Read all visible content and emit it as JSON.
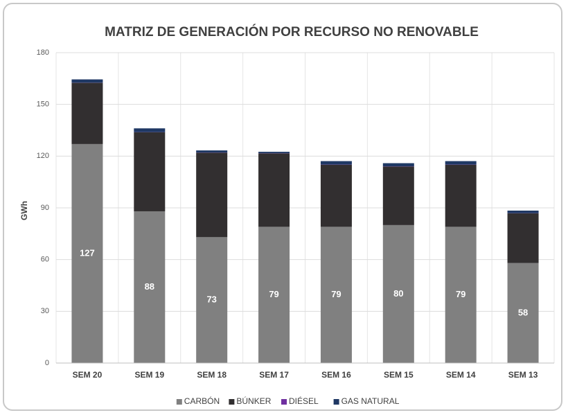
{
  "chart_data": {
    "type": "stacked_bar",
    "title": "MATRIZ DE GENERACIÓN POR RECURSO NO RENOVABLE",
    "y_label": "GWh",
    "categories": [
      "SEM 20",
      "SEM 19",
      "SEM 18",
      "SEM 17",
      "SEM 16",
      "SEM 15",
      "SEM 14",
      "SEM 13"
    ],
    "series": [
      {
        "name": "CARBÓN",
        "color": "#808080",
        "values": [
          127,
          88,
          73,
          79,
          79,
          80,
          79,
          58
        ],
        "show_labels": true
      },
      {
        "name": "BÚNKER",
        "color": "#322f30",
        "values": [
          35.5,
          45.8,
          49,
          42.6,
          36,
          34,
          36,
          28.8
        ]
      },
      {
        "name": "DIÉSEL",
        "color": "#7030a0",
        "values": [
          0.1,
          0.1,
          0.1,
          0.1,
          0.1,
          0.1,
          0.1,
          0.1
        ]
      },
      {
        "name": "GAS NATURAL",
        "color": "#1f3864",
        "values": [
          1.9,
          2.2,
          1.2,
          0.8,
          2,
          1.8,
          2,
          1.5
        ]
      }
    ],
    "ylim": [
      0,
      180
    ],
    "yticks": [
      0,
      30,
      60,
      90,
      120,
      150,
      180
    ],
    "grid": true,
    "legend": "bottom"
  }
}
